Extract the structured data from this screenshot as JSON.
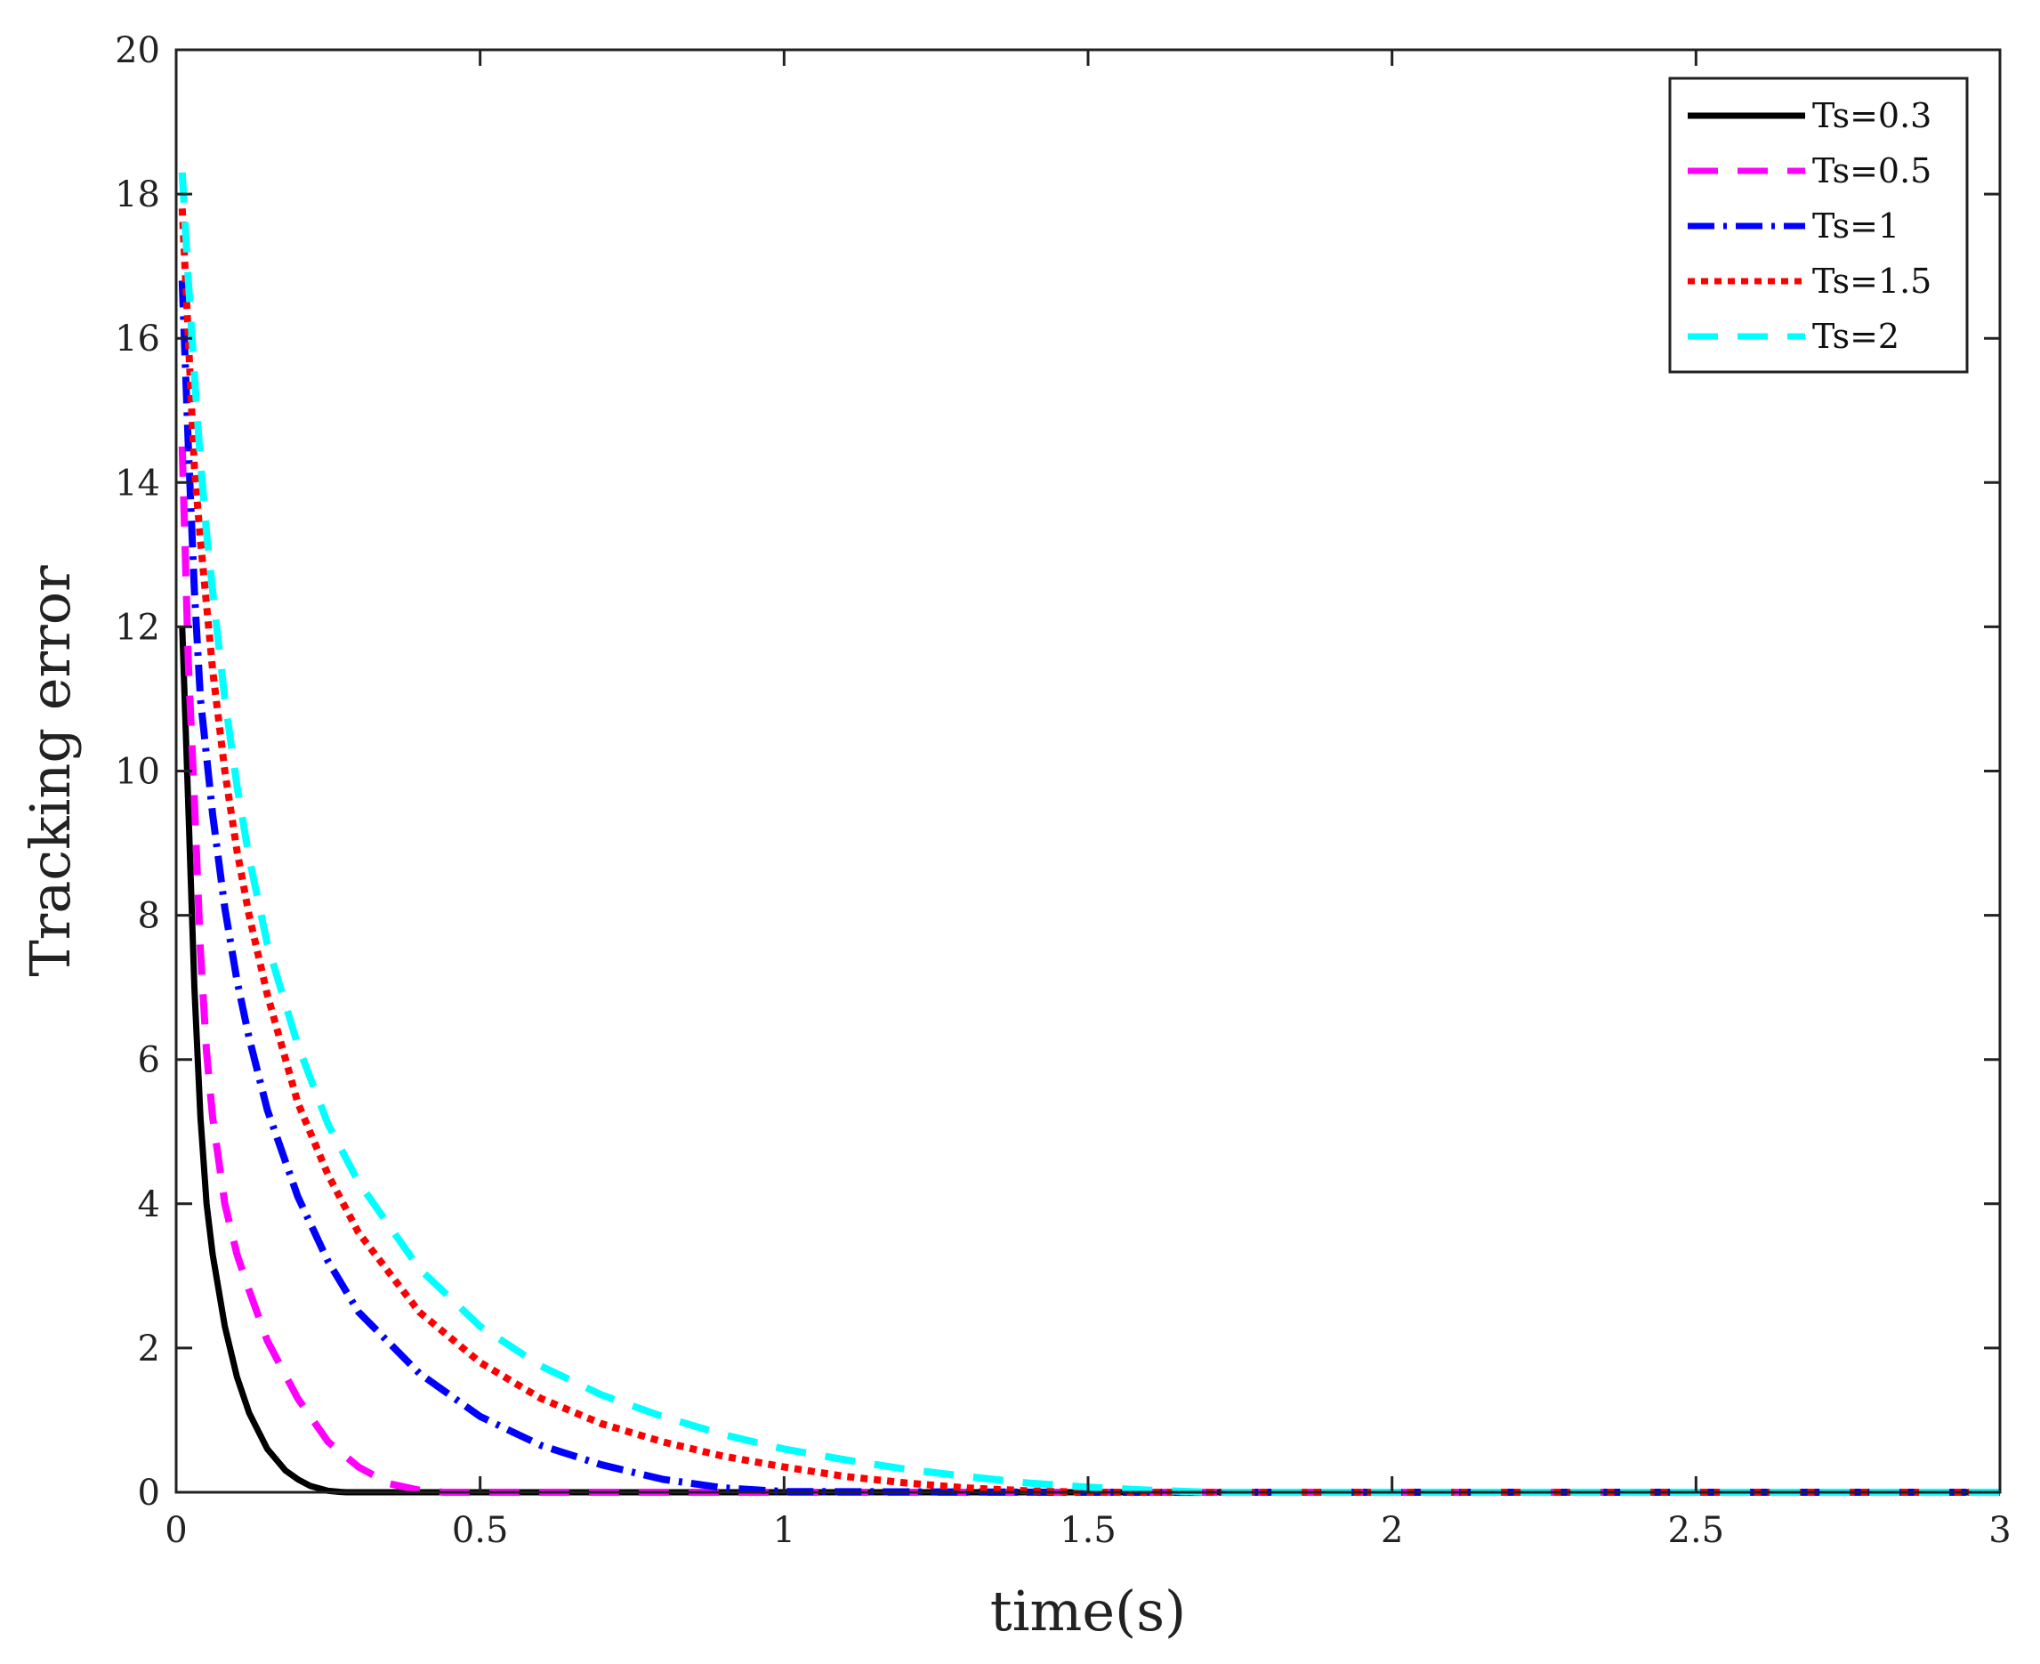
{
  "chart_data": {
    "type": "line",
    "title": "",
    "xlabel": "time(s)",
    "ylabel": "Tracking error",
    "xlim": [
      0,
      3
    ],
    "ylim": [
      0,
      20
    ],
    "xticks": [
      0,
      0.5,
      1,
      1.5,
      2,
      2.5,
      3
    ],
    "xtick_labels": [
      "0",
      "0.5",
      "1",
      "1.5",
      "2",
      "2.5",
      "3"
    ],
    "yticks": [
      0,
      2,
      4,
      6,
      8,
      10,
      12,
      14,
      16,
      18,
      20
    ],
    "ytick_labels": [
      "0",
      "2",
      "4",
      "6",
      "8",
      "10",
      "12",
      "14",
      "16",
      "18",
      "20"
    ],
    "grid": false,
    "legend_position": "top-right",
    "series": [
      {
        "name": "Ts=0.3",
        "color": "#000000",
        "style": "solid",
        "x": [
          0.01,
          0.02,
          0.03,
          0.04,
          0.05,
          0.06,
          0.08,
          0.1,
          0.12,
          0.15,
          0.18,
          0.2,
          0.22,
          0.25,
          0.27,
          0.28,
          0.4,
          1,
          2,
          3
        ],
        "y": [
          12,
          9.5,
          7,
          5.2,
          4,
          3.3,
          2.3,
          1.6,
          1.1,
          0.6,
          0.3,
          0.18,
          0.09,
          0.02,
          0.005,
          0,
          0,
          0,
          0,
          0
        ]
      },
      {
        "name": "Ts=0.5",
        "color": "#ff00ff",
        "style": "dashed",
        "x": [
          0.01,
          0.02,
          0.03,
          0.04,
          0.05,
          0.06,
          0.08,
          0.1,
          0.12,
          0.15,
          0.2,
          0.25,
          0.3,
          0.35,
          0.4,
          0.44,
          1,
          2,
          3
        ],
        "y": [
          14.5,
          11.5,
          9.6,
          7.5,
          6.1,
          5.2,
          4,
          3.3,
          2.8,
          2.1,
          1.3,
          0.7,
          0.35,
          0.12,
          0.03,
          0,
          0,
          0,
          0
        ]
      },
      {
        "name": "Ts=1",
        "color": "#0000ff",
        "style": "dashdot",
        "x": [
          0.01,
          0.02,
          0.03,
          0.04,
          0.05,
          0.06,
          0.08,
          0.1,
          0.12,
          0.15,
          0.2,
          0.25,
          0.3,
          0.4,
          0.5,
          0.6,
          0.7,
          0.8,
          0.9,
          1,
          1.5,
          2,
          3
        ],
        "y": [
          16.8,
          14.5,
          12.5,
          11,
          10.2,
          9.4,
          8.1,
          7.1,
          6.3,
          5.3,
          4.1,
          3.2,
          2.5,
          1.65,
          1.05,
          0.65,
          0.38,
          0.18,
          0.06,
          0.01,
          0,
          0,
          0
        ]
      },
      {
        "name": "Ts=1.5",
        "color": "#ff0000",
        "style": "dotted",
        "x": [
          0.01,
          0.02,
          0.03,
          0.04,
          0.05,
          0.06,
          0.08,
          0.1,
          0.12,
          0.15,
          0.2,
          0.25,
          0.3,
          0.4,
          0.5,
          0.6,
          0.7,
          0.8,
          0.9,
          1,
          1.1,
          1.2,
          1.3,
          1.4,
          1.5,
          2,
          3
        ],
        "y": [
          17.8,
          16,
          14.2,
          13.2,
          12.3,
          11.4,
          10,
          8.9,
          8,
          6.9,
          5.4,
          4.4,
          3.6,
          2.5,
          1.8,
          1.3,
          0.95,
          0.7,
          0.5,
          0.35,
          0.22,
          0.13,
          0.06,
          0.02,
          0,
          0,
          0
        ]
      },
      {
        "name": "Ts=2",
        "color": "#00ffff",
        "style": "dashed",
        "x": [
          0.01,
          0.02,
          0.03,
          0.04,
          0.05,
          0.06,
          0.08,
          0.1,
          0.12,
          0.15,
          0.2,
          0.25,
          0.3,
          0.4,
          0.5,
          0.6,
          0.7,
          0.8,
          0.9,
          1,
          1.1,
          1.2,
          1.3,
          1.4,
          1.5,
          1.6,
          1.7,
          2,
          3
        ],
        "y": [
          18.3,
          16.8,
          15.5,
          14.3,
          13.3,
          12.5,
          11,
          9.8,
          8.8,
          7.6,
          6.2,
          5.1,
          4.3,
          3.1,
          2.3,
          1.75,
          1.35,
          1.05,
          0.8,
          0.6,
          0.45,
          0.32,
          0.22,
          0.13,
          0.07,
          0.03,
          0,
          0,
          0
        ]
      }
    ]
  }
}
